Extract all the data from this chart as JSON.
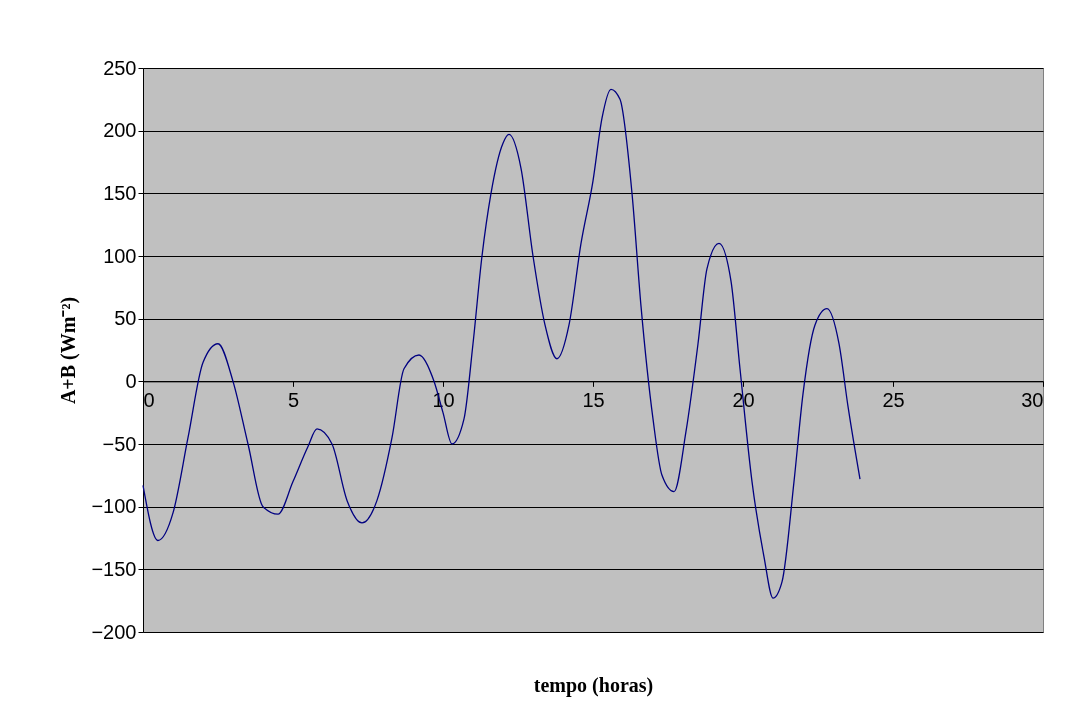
{
  "chart_data": {
    "type": "line",
    "xlabel": "tempo (horas)",
    "ylabel": "A+B (Wm⁻²)",
    "xlim": [
      0,
      30
    ],
    "xticks": [
      0,
      5,
      10,
      15,
      20,
      25,
      30
    ],
    "ylim": [
      -200,
      250
    ],
    "yticks": [
      -200,
      -150,
      -100,
      -50,
      0,
      50,
      100,
      150,
      200,
      250
    ],
    "grid": "y",
    "marker": "none",
    "line_style": "solid",
    "series": [
      {
        "color": "#000080",
        "x": [
          0,
          0.5,
          1,
          1.5,
          2,
          2.5,
          3,
          3.5,
          4,
          4.5,
          5,
          5.5,
          5.8,
          6.3,
          6.8,
          7.3,
          7.8,
          8.3,
          8.7,
          9.2,
          9.7,
          10,
          10.3,
          10.7,
          11,
          11.3,
          11.6,
          12,
          12.2,
          12.6,
          13,
          13.4,
          13.8,
          14.2,
          14.6,
          15,
          15.3,
          15.6,
          15.9,
          16.3,
          16.6,
          17,
          17.3,
          17.7,
          18.1,
          18.5,
          18.8,
          19.2,
          19.6,
          19.9,
          20.3,
          20.7,
          21,
          21.3,
          21.7,
          22,
          22.4,
          22.8,
          23.2,
          23.5,
          23.9
        ],
        "values": [
          -83,
          -127,
          -105,
          -45,
          15,
          30,
          0,
          -50,
          -100,
          -106,
          -80,
          -52,
          -38,
          -50,
          -95,
          -113,
          -95,
          -45,
          10,
          21,
          0,
          -25,
          -50,
          -30,
          30,
          100,
          150,
          190,
          197,
          170,
          100,
          45,
          18,
          45,
          110,
          160,
          210,
          233,
          225,
          150,
          60,
          -30,
          -75,
          -88,
          -40,
          30,
          90,
          110,
          80,
          10,
          -80,
          -140,
          -173,
          -160,
          -80,
          -10,
          45,
          58,
          30,
          -20,
          -78
        ]
      }
    ]
  }
}
